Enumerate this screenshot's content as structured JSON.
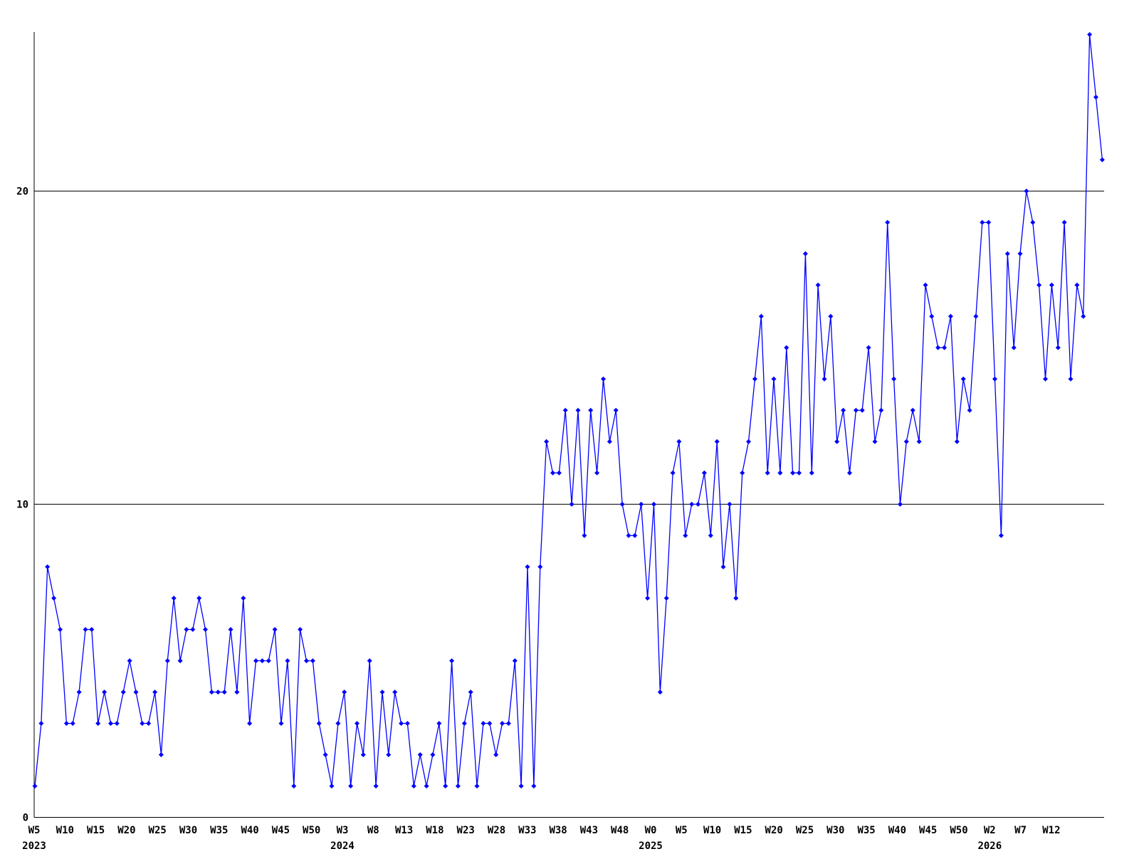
{
  "chart_data": {
    "type": "line",
    "title": "",
    "legend": null,
    "grid": "horizontal lines at 10 and 20",
    "background_color": "#ffffff",
    "axis_color": "#000000",
    "series_color": "#0000ff",
    "marker": "filled-diamond",
    "x_unit": "ISO week (1 point per week)",
    "x_start": {
      "year": 2023,
      "week": 5
    },
    "ylim": [
      0,
      25.3
    ],
    "y_ticks": [
      {
        "value": 0,
        "label": "0",
        "gridline": false
      },
      {
        "value": 10,
        "label": "10",
        "gridline": true
      },
      {
        "value": 20,
        "label": "20",
        "gridline": true
      }
    ],
    "x_ticks": [
      {
        "label": "W5",
        "year": "2023"
      },
      {
        "label": "W10"
      },
      {
        "label": "W15"
      },
      {
        "label": "W20"
      },
      {
        "label": "W25"
      },
      {
        "label": "W30"
      },
      {
        "label": "W35"
      },
      {
        "label": "W40"
      },
      {
        "label": "W45"
      },
      {
        "label": "W50"
      },
      {
        "label": "W3",
        "year": "2024"
      },
      {
        "label": "W8"
      },
      {
        "label": "W13"
      },
      {
        "label": "W18"
      },
      {
        "label": "W23"
      },
      {
        "label": "W28"
      },
      {
        "label": "W33"
      },
      {
        "label": "W38"
      },
      {
        "label": "W43"
      },
      {
        "label": "W48"
      },
      {
        "label": "W0",
        "year": "2025"
      },
      {
        "label": "W5"
      },
      {
        "label": "W10"
      },
      {
        "label": "W15"
      },
      {
        "label": "W20"
      },
      {
        "label": "W25"
      },
      {
        "label": "W30"
      },
      {
        "label": "W35"
      },
      {
        "label": "W40"
      },
      {
        "label": "W45"
      },
      {
        "label": "W50"
      },
      {
        "label": "W2",
        "year": "2026"
      },
      {
        "label": "W7"
      },
      {
        "label": "W12"
      }
    ],
    "values": [
      1,
      3,
      8,
      7,
      6,
      3,
      3,
      4,
      6,
      6,
      3,
      4,
      3,
      3,
      4,
      5,
      4,
      3,
      3,
      4,
      2,
      5,
      7,
      5,
      6,
      6,
      7,
      6,
      4,
      4,
      4,
      6,
      4,
      7,
      3,
      5,
      5,
      5,
      6,
      3,
      5,
      1,
      6,
      5,
      5,
      3,
      2,
      1,
      3,
      4,
      1,
      3,
      2,
      5,
      1,
      4,
      2,
      4,
      3,
      3,
      1,
      2,
      1,
      2,
      3,
      1,
      5,
      1,
      3,
      4,
      1,
      3,
      3,
      2,
      3,
      3,
      5,
      1,
      8,
      1,
      8,
      12,
      11,
      11,
      13,
      10,
      13,
      9,
      13,
      11,
      14,
      12,
      13,
      10,
      9,
      9,
      10,
      7,
      10,
      4,
      7,
      11,
      12,
      9,
      10,
      10,
      11,
      9,
      12,
      8,
      10,
      7,
      11,
      12,
      14,
      16,
      11,
      14,
      11,
      15,
      11,
      11,
      18,
      11,
      17,
      14,
      16,
      12,
      13,
      11,
      13,
      13,
      15,
      12,
      13,
      19,
      14,
      10,
      12,
      13,
      12,
      17,
      16,
      15,
      15,
      16,
      12,
      14,
      13,
      16,
      19,
      19,
      14,
      9,
      18,
      15,
      18,
      20,
      19,
      17,
      14,
      17,
      15,
      19,
      14,
      17,
      16,
      25,
      23,
      21
    ]
  }
}
